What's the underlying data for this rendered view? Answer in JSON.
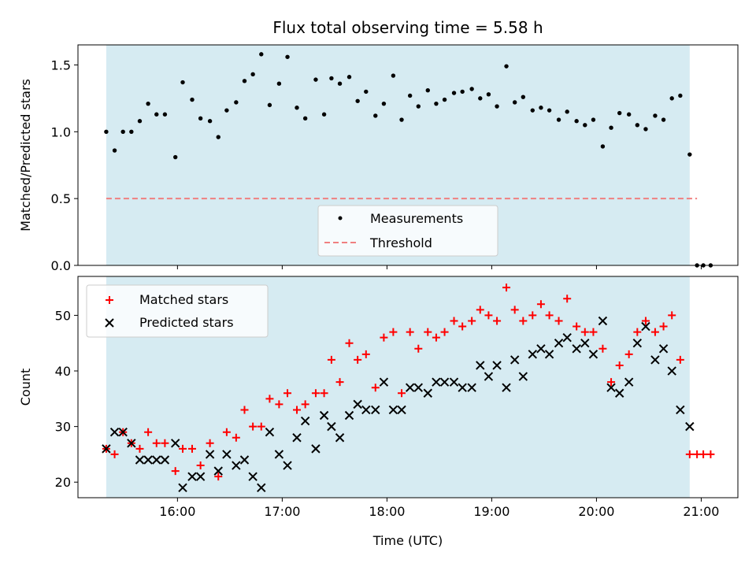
{
  "chart_data": [
    {
      "type": "scatter",
      "title": "Flux total observing time = 5.58 h",
      "ylabel": "Matched/Predicted stars",
      "xlabel": "",
      "x_ticks": [
        "16:00",
        "17:00",
        "18:00",
        "19:00",
        "20:00",
        "21:00"
      ],
      "x_tick_hours": [
        16,
        17,
        18,
        19,
        20,
        21
      ],
      "xlim_hours": [
        15.05,
        21.35
      ],
      "ylim": [
        0,
        1.65
      ],
      "y_ticks": [
        0.0,
        0.5,
        1.0,
        1.5
      ],
      "y_tick_labels": [
        "0.0",
        "0.5",
        "1.0",
        "1.5"
      ],
      "shaded_span_hours": [
        15.32,
        20.89
      ],
      "shade_color": "#add8e6",
      "threshold": {
        "name": "Threshold",
        "value": 0.5,
        "x_range_hours": [
          15.32,
          20.96
        ],
        "color": "#f08080"
      },
      "legend": {
        "placement": "lower-center",
        "entries": [
          "Measurements",
          "Threshold"
        ]
      },
      "series": [
        {
          "name": "Measurements",
          "color": "#000000",
          "x_hours": [
            15.32,
            15.4,
            15.48,
            15.56,
            15.64,
            15.72,
            15.8,
            15.88,
            15.98,
            16.05,
            16.14,
            16.22,
            16.31,
            16.39,
            16.47,
            16.56,
            16.64,
            16.72,
            16.8,
            16.88,
            16.97,
            17.05,
            17.14,
            17.22,
            17.32,
            17.4,
            17.47,
            17.55,
            17.64,
            17.72,
            17.8,
            17.89,
            17.97,
            18.06,
            18.14,
            18.22,
            18.3,
            18.39,
            18.47,
            18.55,
            18.64,
            18.72,
            18.81,
            18.89,
            18.97,
            19.05,
            19.14,
            19.22,
            19.3,
            19.39,
            19.47,
            19.55,
            19.64,
            19.72,
            19.81,
            19.89,
            19.97,
            20.06,
            20.14,
            20.22,
            20.31,
            20.39,
            20.47,
            20.56,
            20.64,
            20.72,
            20.8,
            20.89,
            20.96,
            21.02,
            21.09
          ],
          "values": [
            1.0,
            0.86,
            1.0,
            1.0,
            1.08,
            1.21,
            1.13,
            1.13,
            0.81,
            1.37,
            1.24,
            1.1,
            1.08,
            0.96,
            1.16,
            1.22,
            1.38,
            1.43,
            1.58,
            1.2,
            1.36,
            1.56,
            1.18,
            1.1,
            1.39,
            1.13,
            1.4,
            1.36,
            1.41,
            1.23,
            1.3,
            1.12,
            1.21,
            1.42,
            1.09,
            1.27,
            1.19,
            1.31,
            1.21,
            1.24,
            1.29,
            1.3,
            1.32,
            1.25,
            1.28,
            1.19,
            1.49,
            1.22,
            1.26,
            1.16,
            1.18,
            1.16,
            1.09,
            1.15,
            1.08,
            1.05,
            1.09,
            0.89,
            1.03,
            1.14,
            1.13,
            1.05,
            1.02,
            1.12,
            1.09,
            1.25,
            1.27,
            0.83,
            0.0,
            0.0,
            0.0
          ]
        }
      ]
    },
    {
      "type": "scatter",
      "title": "",
      "xlabel": "Time (UTC)",
      "ylabel": "Count",
      "x_ticks": [
        "16:00",
        "17:00",
        "18:00",
        "19:00",
        "20:00",
        "21:00"
      ],
      "x_tick_hours": [
        16,
        17,
        18,
        19,
        20,
        21
      ],
      "xlim_hours": [
        15.05,
        21.35
      ],
      "ylim": [
        17.2,
        57.0
      ],
      "y_ticks": [
        20,
        30,
        40,
        50
      ],
      "y_tick_labels": [
        "20",
        "30",
        "40",
        "50"
      ],
      "shaded_span_hours": [
        15.32,
        20.89
      ],
      "shade_color": "#add8e6",
      "legend": {
        "placement": "top-left",
        "entries": [
          "Matched stars",
          "Predicted stars"
        ]
      },
      "series": [
        {
          "name": "Matched stars",
          "marker": "plus",
          "color": "#ff0000",
          "x_hours": [
            15.32,
            15.4,
            15.48,
            15.56,
            15.64,
            15.72,
            15.8,
            15.88,
            15.98,
            16.05,
            16.14,
            16.22,
            16.31,
            16.39,
            16.47,
            16.56,
            16.64,
            16.72,
            16.8,
            16.88,
            16.97,
            17.05,
            17.14,
            17.22,
            17.32,
            17.4,
            17.47,
            17.55,
            17.64,
            17.72,
            17.8,
            17.89,
            17.97,
            18.06,
            18.14,
            18.22,
            18.3,
            18.39,
            18.47,
            18.55,
            18.64,
            18.72,
            18.81,
            18.89,
            18.97,
            19.05,
            19.14,
            19.22,
            19.3,
            19.39,
            19.47,
            19.55,
            19.64,
            19.72,
            19.81,
            19.89,
            19.97,
            20.06,
            20.14,
            20.22,
            20.31,
            20.39,
            20.47,
            20.56,
            20.64,
            20.72,
            20.8,
            20.89,
            20.96,
            21.02,
            21.09
          ],
          "values": [
            26,
            25,
            29,
            27,
            26,
            29,
            27,
            27,
            22,
            26,
            26,
            23,
            27,
            21,
            29,
            28,
            33,
            30,
            30,
            35,
            34,
            36,
            33,
            34,
            36,
            36,
            42,
            38,
            45,
            42,
            43,
            37,
            46,
            47,
            36,
            47,
            44,
            47,
            46,
            47,
            49,
            48,
            49,
            51,
            50,
            49,
            55,
            51,
            49,
            50,
            52,
            50,
            49,
            53,
            48,
            47,
            47,
            44,
            38,
            41,
            43,
            47,
            49,
            47,
            48,
            50,
            42,
            25,
            25,
            25,
            25
          ]
        },
        {
          "name": "Predicted stars",
          "marker": "x",
          "color": "#000000",
          "x_hours": [
            15.32,
            15.4,
            15.48,
            15.56,
            15.64,
            15.72,
            15.8,
            15.88,
            15.98,
            16.05,
            16.14,
            16.22,
            16.31,
            16.39,
            16.47,
            16.56,
            16.64,
            16.72,
            16.8,
            16.88,
            16.97,
            17.05,
            17.14,
            17.22,
            17.32,
            17.4,
            17.47,
            17.55,
            17.64,
            17.72,
            17.8,
            17.89,
            17.97,
            18.06,
            18.14,
            18.22,
            18.3,
            18.39,
            18.47,
            18.55,
            18.64,
            18.72,
            18.81,
            18.89,
            18.97,
            19.05,
            19.14,
            19.22,
            19.3,
            19.39,
            19.47,
            19.55,
            19.64,
            19.72,
            19.81,
            19.89,
            19.97,
            20.06,
            20.14,
            20.22,
            20.31,
            20.39,
            20.47,
            20.56,
            20.64,
            20.72,
            20.8,
            20.89
          ],
          "values": [
            26,
            29,
            29,
            27,
            24,
            24,
            24,
            24,
            27,
            19,
            21,
            21,
            25,
            22,
            25,
            23,
            24,
            21,
            19,
            29,
            25,
            23,
            28,
            31,
            26,
            32,
            30,
            28,
            32,
            34,
            33,
            33,
            38,
            33,
            33,
            37,
            37,
            36,
            38,
            38,
            38,
            37,
            37,
            41,
            39,
            41,
            37,
            42,
            39,
            43,
            44,
            43,
            45,
            46,
            44,
            45,
            43,
            49,
            37,
            36,
            38,
            45,
            48,
            42,
            44,
            40,
            33,
            30
          ]
        }
      ]
    }
  ]
}
